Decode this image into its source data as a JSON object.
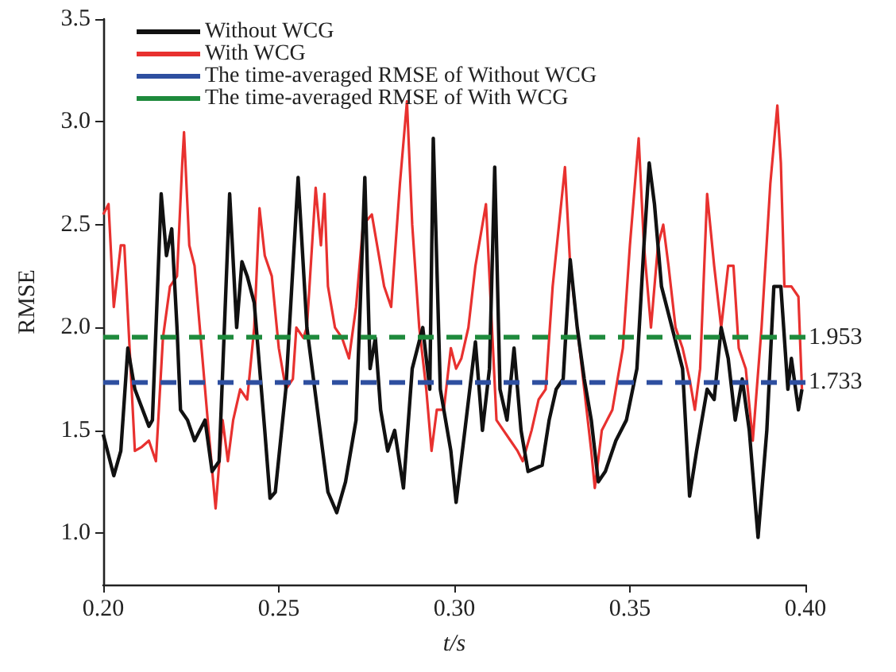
{
  "chart_data": {
    "type": "line",
    "xlabel": "t/s",
    "ylabel": "RMSE",
    "xlim": [
      0.2,
      0.4
    ],
    "xticks": [
      {
        "value": 0.2,
        "label": "0.20"
      },
      0.25,
      {
        "value": 0.3,
        "label": "0.30"
      },
      0.35,
      {
        "value": 0.4,
        "label": "0.40"
      }
    ],
    "ylim": [
      0.75,
      3.5
    ],
    "yticks": [
      {
        "value": 1,
        "label": "1.0"
      },
      1.5,
      {
        "value": 2,
        "label": "2.0"
      },
      2.5,
      {
        "value": 3,
        "label": "3.0"
      },
      3.5
    ],
    "x": [
      0.2,
      0.203,
      0.205,
      0.207,
      0.209,
      0.213,
      0.214,
      0.2165,
      0.218,
      0.2195,
      0.221,
      0.222,
      0.224,
      0.226,
      0.229,
      0.231,
      0.233,
      0.236,
      0.238,
      0.2395,
      0.241,
      0.243,
      0.246,
      0.2475,
      0.249,
      0.252,
      0.2555,
      0.258,
      0.261,
      0.264,
      0.2665,
      0.269,
      0.272,
      0.2745,
      0.276,
      0.2775,
      0.279,
      0.281,
      0.283,
      0.2855,
      0.288,
      0.291,
      0.293,
      0.294,
      0.296,
      0.299,
      0.3005,
      0.303,
      0.306,
      0.308,
      0.31,
      0.3115,
      0.313,
      0.315,
      0.317,
      0.319,
      0.321,
      0.325,
      0.327,
      0.329,
      0.331,
      0.333,
      0.335,
      0.337,
      0.339,
      0.341,
      0.343,
      0.346,
      0.349,
      0.352,
      0.354,
      0.3555,
      0.357,
      0.359,
      0.362,
      0.365,
      0.367,
      0.369,
      0.372,
      0.374,
      0.376,
      0.378,
      0.38,
      0.382,
      0.384,
      0.3865,
      0.389,
      0.391,
      0.393,
      0.395,
      0.396,
      0.398,
      0.399
    ],
    "series": [
      {
        "name": "Without WCG",
        "color": "#111111",
        "values": [
          1.48,
          1.28,
          1.4,
          1.9,
          1.7,
          1.52,
          1.55,
          2.65,
          2.35,
          2.48,
          2.0,
          1.6,
          1.55,
          1.45,
          1.55,
          1.3,
          1.35,
          2.65,
          2.0,
          2.32,
          2.25,
          2.12,
          1.5,
          1.17,
          1.2,
          1.7,
          2.73,
          2.0,
          1.6,
          1.2,
          1.1,
          1.25,
          1.55,
          2.73,
          1.8,
          1.95,
          1.6,
          1.4,
          1.5,
          1.22,
          1.8,
          2.0,
          1.7,
          2.92,
          1.7,
          1.4,
          1.15,
          1.5,
          1.93,
          1.5,
          1.8,
          2.78,
          1.7,
          1.55,
          1.9,
          1.5,
          1.3,
          1.33,
          1.55,
          1.7,
          1.75,
          2.33,
          2.0,
          1.75,
          1.55,
          1.25,
          1.3,
          1.45,
          1.55,
          1.8,
          2.4,
          2.8,
          2.6,
          2.2,
          2.0,
          1.8,
          1.18,
          1.4,
          1.7,
          1.65,
          2.0,
          1.85,
          1.55,
          1.75,
          1.5,
          0.98,
          1.5,
          2.2,
          2.2,
          1.7,
          1.85,
          1.6,
          1.7
        ]
      },
      {
        "name": "With WCG",
        "color": "#e8312f",
        "x": [
          0.2,
          0.2015,
          0.203,
          0.205,
          0.206,
          0.2075,
          0.209,
          0.211,
          0.213,
          0.215,
          0.217,
          0.219,
          0.221,
          0.2225,
          0.223,
          0.2245,
          0.226,
          0.228,
          0.23,
          0.232,
          0.234,
          0.2355,
          0.237,
          0.239,
          0.241,
          0.243,
          0.2445,
          0.246,
          0.248,
          0.25,
          0.252,
          0.254,
          0.255,
          0.257,
          0.258,
          0.2605,
          0.262,
          0.263,
          0.264,
          0.266,
          0.268,
          0.27,
          0.272,
          0.274,
          0.2765,
          0.278,
          0.28,
          0.282,
          0.2845,
          0.2865,
          0.288,
          0.29,
          0.292,
          0.2935,
          0.295,
          0.297,
          0.299,
          0.3005,
          0.302,
          0.304,
          0.306,
          0.307,
          0.309,
          0.311,
          0.312,
          0.314,
          0.316,
          0.318,
          0.3195,
          0.322,
          0.324,
          0.326,
          0.328,
          0.3315,
          0.333,
          0.335,
          0.337,
          0.339,
          0.34,
          0.342,
          0.345,
          0.348,
          0.35,
          0.3525,
          0.354,
          0.356,
          0.358,
          0.3595,
          0.361,
          0.363,
          0.365,
          0.367,
          0.3685,
          0.37,
          0.372,
          0.374,
          0.376,
          0.378,
          0.3795,
          0.381,
          0.383,
          0.385,
          0.3875,
          0.39,
          0.392,
          0.393,
          0.394,
          0.396,
          0.398,
          0.399
        ],
        "values": [
          2.55,
          2.6,
          2.1,
          2.4,
          2.4,
          1.9,
          1.4,
          1.42,
          1.45,
          1.35,
          1.95,
          2.2,
          2.25,
          2.8,
          2.95,
          2.4,
          2.3,
          1.9,
          1.5,
          1.12,
          1.55,
          1.35,
          1.55,
          1.7,
          1.65,
          2.0,
          2.58,
          2.35,
          2.25,
          1.9,
          1.7,
          1.75,
          2.0,
          1.95,
          2.0,
          2.68,
          2.4,
          2.65,
          2.2,
          2.0,
          1.95,
          1.85,
          2.1,
          2.5,
          2.55,
          2.4,
          2.2,
          2.1,
          2.7,
          3.1,
          2.5,
          2.0,
          1.7,
          1.4,
          1.6,
          1.6,
          1.9,
          1.8,
          1.85,
          2.0,
          2.3,
          2.4,
          2.6,
          1.9,
          1.55,
          1.5,
          1.45,
          1.4,
          1.35,
          1.5,
          1.65,
          1.7,
          2.2,
          2.78,
          2.3,
          2.0,
          1.7,
          1.4,
          1.22,
          1.5,
          1.6,
          1.9,
          2.4,
          2.92,
          2.4,
          2.0,
          2.4,
          2.5,
          2.3,
          2.0,
          1.9,
          1.75,
          1.6,
          1.8,
          2.65,
          2.3,
          2.0,
          2.3,
          2.3,
          1.9,
          1.8,
          1.45,
          2.0,
          2.7,
          3.08,
          2.8,
          2.2,
          2.2,
          2.15,
          1.7
        ]
      },
      {
        "name": "The time-averaged RMSE of Without WCG",
        "color": "#2e4fa0",
        "line_style": "dashed",
        "x": [
          0.2,
          0.4
        ],
        "values": [
          1.733,
          1.733
        ]
      },
      {
        "name": "The time-averaged RMSE of With WCG",
        "color": "#1e8a3c",
        "line_style": "dashed",
        "x": [
          0.2,
          0.4
        ],
        "values": [
          1.953,
          1.953
        ]
      }
    ],
    "annotations": [
      {
        "text": "1.953",
        "x": 0.4,
        "y": 1.953
      },
      {
        "text": "1.733",
        "x": 0.4,
        "y": 1.733
      }
    ],
    "legend": "top left",
    "grid": false,
    "marker": "none"
  }
}
